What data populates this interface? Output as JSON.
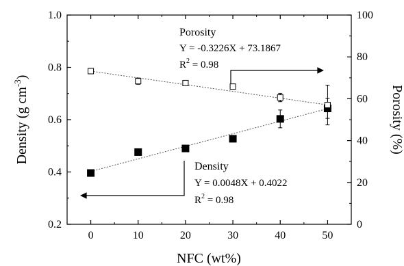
{
  "chart_data": {
    "type": "scatter",
    "xlabel": "NFC (wt%)",
    "ylabel_left": "Density (g cm",
    "ylabel_left_sup": "-3",
    "ylabel_left_close": ")",
    "ylabel_right": "Porosity (%)",
    "xlim": [
      -5,
      55
    ],
    "ylim_left": [
      0.2,
      1.0
    ],
    "ylim_right": [
      0,
      100
    ],
    "x_ticks": [
      0,
      10,
      20,
      30,
      40,
      50
    ],
    "x_tick_labels": [
      "0",
      "10",
      "20",
      "30",
      "40",
      "50"
    ],
    "y_left_ticks": [
      0.2,
      0.4,
      0.6,
      0.8,
      1.0
    ],
    "y_left_tick_labels": [
      "0.2",
      "0.4",
      "0.6",
      "0.8",
      "1.0"
    ],
    "y_right_ticks": [
      0,
      20,
      40,
      60,
      80,
      100
    ],
    "y_right_tick_labels": [
      "0",
      "20",
      "40",
      "60",
      "80",
      "100"
    ],
    "series": [
      {
        "name": "Density",
        "axis": "left",
        "marker": "filled-square",
        "color": "#000000",
        "x": [
          0,
          10,
          20,
          30,
          40,
          50
        ],
        "y": [
          0.396,
          0.476,
          0.49,
          0.527,
          0.603,
          0.643
        ],
        "err": [
          0,
          0,
          0,
          0,
          0.034,
          0.038
        ],
        "fit": {
          "slope": 0.0048,
          "intercept": 0.4022
        }
      },
      {
        "name": "Porosity",
        "axis": "right",
        "marker": "open-square",
        "color": "#000000",
        "x": [
          0,
          10,
          20,
          30,
          40,
          50
        ],
        "y": [
          73.2,
          68.4,
          67.5,
          65.8,
          60.6,
          57.0
        ],
        "err": [
          0,
          1.5,
          1.2,
          1.0,
          2.0,
          9.5
        ],
        "fit": {
          "slope": -0.3226,
          "intercept": 73.1867
        }
      }
    ],
    "annotations": {
      "porosity": {
        "title": "Porosity",
        "equation": "Y = -0.3226X + 73.1867",
        "r2_prefix": "R",
        "r2_sup": "2",
        "r2_value": " = 0.98"
      },
      "density": {
        "title": "Density",
        "equation": "Y = 0.0048X + 0.4022",
        "r2_prefix": "R",
        "r2_sup": "2",
        "r2_value": " = 0.98"
      }
    }
  }
}
